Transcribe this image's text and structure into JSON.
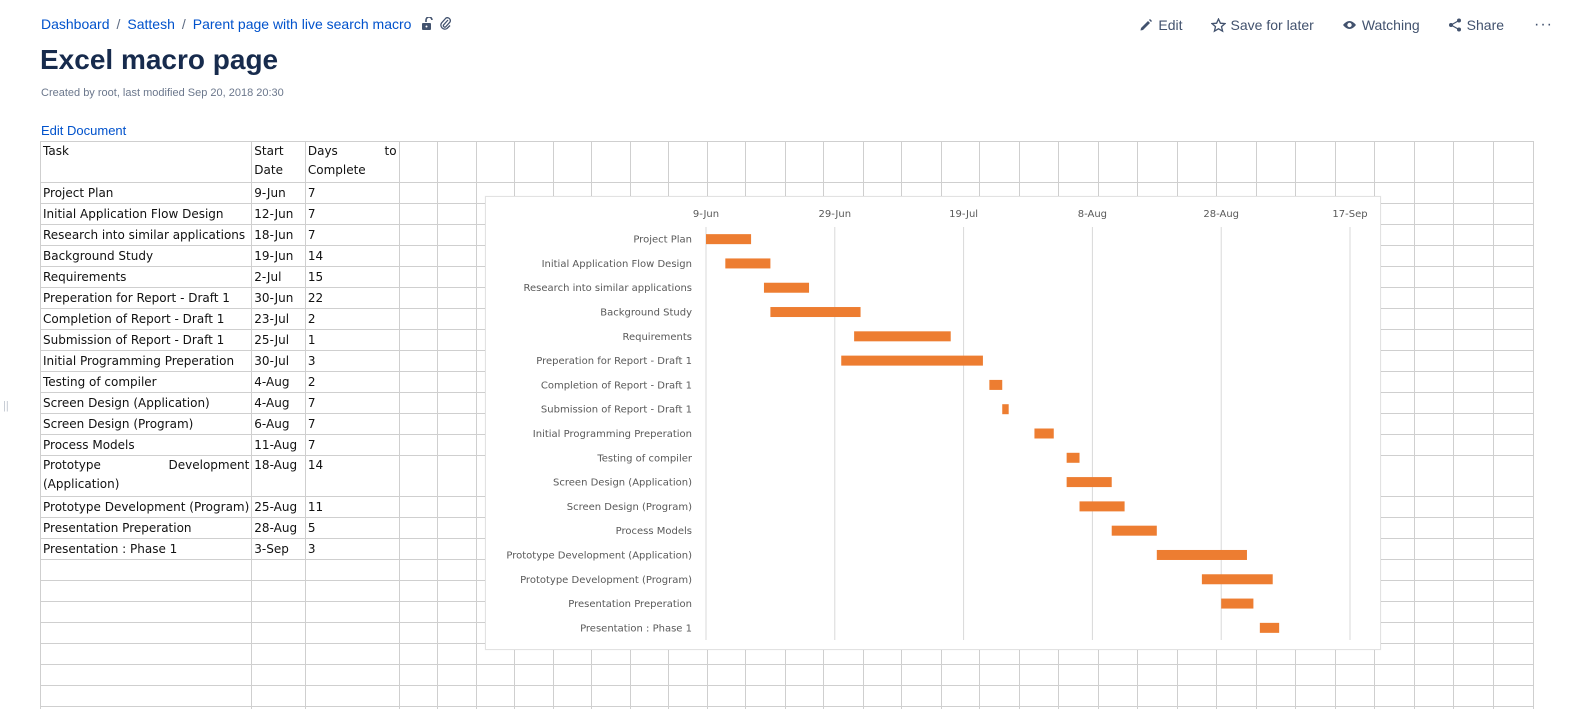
{
  "breadcrumb": {
    "items": [
      "Dashboard",
      "Sattesh",
      "Parent page with live search macro"
    ],
    "separator": "/",
    "icons": [
      "unlock-icon",
      "attachment-icon"
    ]
  },
  "actions": {
    "edit": "Edit",
    "save": "Save for later",
    "watching": "Watching",
    "share": "Share",
    "more": "···"
  },
  "page": {
    "title": "Excel macro page",
    "meta": "Created by root, last modified Sep 20, 2018 20:30",
    "edit_document": "Edit Document"
  },
  "sheet": {
    "headers": [
      "Task",
      "Start Date",
      "Days to Complete"
    ],
    "rows": [
      [
        "Project Plan",
        "9-Jun",
        "7"
      ],
      [
        "Initial Application Flow Design",
        "12-Jun",
        "7"
      ],
      [
        "Research into similar applications",
        "18-Jun",
        "7"
      ],
      [
        "Background Study",
        "19-Jun",
        "14"
      ],
      [
        "Requirements",
        "2-Jul",
        "15"
      ],
      [
        "Preperation for Report - Draft 1",
        "30-Jun",
        "22"
      ],
      [
        "Completion of Report - Draft 1",
        "23-Jul",
        "2"
      ],
      [
        "Submission of Report - Draft 1",
        "25-Jul",
        "1"
      ],
      [
        "Initial Programming Preperation",
        "30-Jul",
        "3"
      ],
      [
        "Testing of compiler",
        "4-Aug",
        "2"
      ],
      [
        "Screen Design (Application)",
        "4-Aug",
        "7"
      ],
      [
        "Screen Design (Program)",
        "6-Aug",
        "7"
      ],
      [
        "Process Models",
        "11-Aug",
        "7"
      ],
      [
        "Prototype Development (Application)",
        "18-Aug",
        "14"
      ],
      [
        "Prototype Development (Program)",
        "25-Aug",
        "11"
      ],
      [
        "Presentation Preperation",
        "28-Aug",
        "5"
      ],
      [
        "Presentation : Phase 1",
        "3-Sep",
        "3"
      ]
    ]
  },
  "chart_data": {
    "type": "bar",
    "orientation": "horizontal-gantt",
    "x_ticks": [
      "9-Jun",
      "29-Jun",
      "19-Jul",
      "8-Aug",
      "28-Aug",
      "17-Sep"
    ],
    "xlim": [
      "9-Jun",
      "20-Sep"
    ],
    "grid": true,
    "bar_color": "#ed7d31",
    "tasks": [
      {
        "name": "Project Plan",
        "start": "9-Jun",
        "days": 7
      },
      {
        "name": "Initial Application Flow Design",
        "start": "12-Jun",
        "days": 7
      },
      {
        "name": "Research into similar applications",
        "start": "18-Jun",
        "days": 7
      },
      {
        "name": "Background Study",
        "start": "19-Jun",
        "days": 14
      },
      {
        "name": "Requirements",
        "start": "2-Jul",
        "days": 15
      },
      {
        "name": "Preperation for Report - Draft 1",
        "start": "30-Jun",
        "days": 22
      },
      {
        "name": "Completion of Report - Draft 1",
        "start": "23-Jul",
        "days": 2
      },
      {
        "name": "Submission of Report - Draft 1",
        "start": "25-Jul",
        "days": 1
      },
      {
        "name": "Initial Programming Preperation",
        "start": "30-Jul",
        "days": 3
      },
      {
        "name": "Testing of compiler",
        "start": "4-Aug",
        "days": 2
      },
      {
        "name": "Screen Design (Application)",
        "start": "4-Aug",
        "days": 7
      },
      {
        "name": "Screen Design (Program)",
        "start": "6-Aug",
        "days": 7
      },
      {
        "name": "Process Models",
        "start": "11-Aug",
        "days": 7
      },
      {
        "name": "Prototype Development (Application)",
        "start": "18-Aug",
        "days": 14
      },
      {
        "name": "Prototype Development (Program)",
        "start": "25-Aug",
        "days": 11
      },
      {
        "name": "Presentation Preperation",
        "start": "28-Aug",
        "days": 5
      },
      {
        "name": "Presentation : Phase 1",
        "start": "3-Sep",
        "days": 3
      }
    ]
  }
}
